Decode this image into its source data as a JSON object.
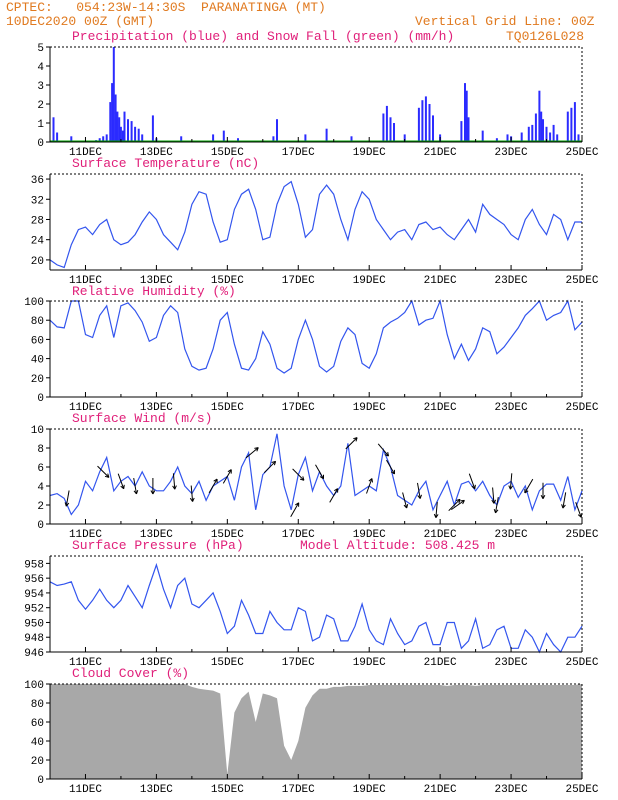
{
  "header": {
    "line1": "CPTEC:   054:23W-14:30S  PARANATINGA (MT)",
    "line2": "10DEC2020 00Z (GMT)",
    "vgrid": "Vertical Grid Line: 00Z",
    "code": "TQ0126L028"
  },
  "colors": {
    "precip": "#2b2bff",
    "snow": "#00a000",
    "line": "#3355ee",
    "cloud": "#a8a8a8",
    "title": "#e0207a",
    "header": "#e07a20"
  },
  "x_axis": {
    "ticks": [
      "11DEC",
      "13DEC",
      "15DEC",
      "17DEC",
      "19DEC",
      "21DEC",
      "23DEC",
      "25DEC"
    ],
    "start_day": 10,
    "end_day": 25
  },
  "chart_data": [
    {
      "id": "precip",
      "type": "bar",
      "title": "Precipitation (blue) and Snow Fall (green) (mm/h)",
      "ylim": [
        0,
        5
      ],
      "yticks": [
        "0",
        "1",
        "2",
        "3",
        "4",
        "5"
      ],
      "series": [
        {
          "name": "Precipitation",
          "points": [
            [
              10.1,
              1.3
            ],
            [
              10.2,
              0.5
            ],
            [
              10.6,
              0.3
            ],
            [
              11.3,
              0.1
            ],
            [
              11.4,
              0.2
            ],
            [
              11.5,
              0.3
            ],
            [
              11.6,
              0.4
            ],
            [
              11.7,
              2.1
            ],
            [
              11.75,
              3.1
            ],
            [
              11.8,
              5.0
            ],
            [
              11.85,
              2.5
            ],
            [
              11.9,
              1.6
            ],
            [
              11.95,
              1.3
            ],
            [
              12.0,
              0.8
            ],
            [
              12.05,
              0.6
            ],
            [
              12.1,
              1.6
            ],
            [
              12.2,
              1.2
            ],
            [
              12.3,
              1.1
            ],
            [
              12.4,
              0.8
            ],
            [
              12.5,
              0.7
            ],
            [
              12.6,
              0.4
            ],
            [
              12.9,
              1.4
            ],
            [
              13.0,
              0.2
            ],
            [
              13.7,
              0.3
            ],
            [
              14.6,
              0.4
            ],
            [
              14.9,
              0.6
            ],
            [
              15.3,
              0.2
            ],
            [
              16.3,
              0.3
            ],
            [
              16.4,
              1.2
            ],
            [
              17.2,
              0.4
            ],
            [
              17.8,
              0.7
            ],
            [
              18.5,
              0.3
            ],
            [
              19.4,
              1.5
            ],
            [
              19.5,
              1.9
            ],
            [
              19.6,
              1.3
            ],
            [
              19.7,
              1.0
            ],
            [
              20.0,
              0.4
            ],
            [
              20.4,
              1.8
            ],
            [
              20.5,
              2.2
            ],
            [
              20.6,
              2.4
            ],
            [
              20.7,
              2.0
            ],
            [
              20.8,
              1.4
            ],
            [
              21.0,
              0.4
            ],
            [
              21.6,
              1.1
            ],
            [
              21.7,
              3.1
            ],
            [
              21.75,
              2.7
            ],
            [
              21.8,
              1.3
            ],
            [
              22.2,
              0.6
            ],
            [
              22.6,
              0.2
            ],
            [
              22.9,
              0.4
            ],
            [
              23.0,
              0.3
            ],
            [
              23.3,
              0.5
            ],
            [
              23.5,
              0.8
            ],
            [
              23.6,
              0.9
            ],
            [
              23.7,
              1.5
            ],
            [
              23.8,
              2.7
            ],
            [
              23.85,
              1.6
            ],
            [
              23.9,
              1.2
            ],
            [
              24.0,
              0.8
            ],
            [
              24.1,
              0.5
            ],
            [
              24.2,
              0.9
            ],
            [
              24.3,
              0.4
            ],
            [
              24.6,
              1.6
            ],
            [
              24.7,
              1.8
            ],
            [
              24.8,
              2.1
            ],
            [
              24.9,
              0.4
            ]
          ]
        },
        {
          "name": "Snow Fall",
          "points": []
        }
      ]
    },
    {
      "id": "temp",
      "type": "line",
      "title": "Surface Temperature (nC)",
      "ylim": [
        18,
        37
      ],
      "yticks": [
        "20",
        "24",
        "28",
        "32",
        "36"
      ],
      "x": [
        10.0,
        10.2,
        10.4,
        10.6,
        10.8,
        11.0,
        11.2,
        11.4,
        11.6,
        11.8,
        12.0,
        12.2,
        12.4,
        12.6,
        12.8,
        13.0,
        13.2,
        13.4,
        13.6,
        13.8,
        14.0,
        14.2,
        14.4,
        14.6,
        14.8,
        15.0,
        15.2,
        15.4,
        15.6,
        15.8,
        16.0,
        16.2,
        16.4,
        16.6,
        16.8,
        17.0,
        17.2,
        17.4,
        17.6,
        17.8,
        18.0,
        18.2,
        18.4,
        18.6,
        18.8,
        19.0,
        19.2,
        19.4,
        19.6,
        19.8,
        20.0,
        20.2,
        20.4,
        20.6,
        20.8,
        21.0,
        21.2,
        21.4,
        21.6,
        21.8,
        22.0,
        22.2,
        22.4,
        22.6,
        22.8,
        23.0,
        23.2,
        23.4,
        23.6,
        23.8,
        24.0,
        24.2,
        24.4,
        24.6,
        24.8,
        25.0
      ],
      "values": [
        20,
        19,
        18.5,
        23,
        26,
        26.5,
        25,
        27,
        28,
        24,
        23,
        23.5,
        25,
        27.5,
        29.5,
        28,
        25,
        23.5,
        22,
        25.5,
        31,
        33.5,
        33,
        27.5,
        23.5,
        24,
        30,
        33,
        34,
        30,
        24,
        24.5,
        31,
        34.5,
        35.5,
        31,
        24.5,
        26,
        33,
        34.8,
        33,
        28,
        24,
        30,
        33.5,
        32,
        28,
        26,
        24,
        25.5,
        26,
        24,
        27,
        27.5,
        26,
        26.5,
        25,
        24,
        26,
        28,
        25.5,
        31,
        29,
        28,
        27,
        25,
        24,
        28,
        30,
        27,
        25,
        29,
        28,
        24,
        27.5,
        27.5
      ]
    },
    {
      "id": "rh",
      "type": "line",
      "title": "Relative Humidity (%)",
      "ylim": [
        0,
        100
      ],
      "yticks": [
        "0",
        "20",
        "40",
        "60",
        "80",
        "100"
      ],
      "x": [
        10.0,
        10.2,
        10.4,
        10.6,
        10.8,
        11.0,
        11.2,
        11.4,
        11.6,
        11.8,
        12.0,
        12.2,
        12.4,
        12.6,
        12.8,
        13.0,
        13.2,
        13.4,
        13.6,
        13.8,
        14.0,
        14.2,
        14.4,
        14.6,
        14.8,
        15.0,
        15.2,
        15.4,
        15.6,
        15.8,
        16.0,
        16.2,
        16.4,
        16.6,
        16.8,
        17.0,
        17.2,
        17.4,
        17.6,
        17.8,
        18.0,
        18.2,
        18.4,
        18.6,
        18.8,
        19.0,
        19.2,
        19.4,
        19.6,
        19.8,
        20.0,
        20.2,
        20.4,
        20.6,
        20.8,
        21.0,
        21.2,
        21.4,
        21.6,
        21.8,
        22.0,
        22.2,
        22.4,
        22.6,
        22.8,
        23.0,
        23.2,
        23.4,
        23.6,
        23.8,
        24.0,
        24.2,
        24.4,
        24.6,
        24.8,
        25.0
      ],
      "values": [
        80,
        73,
        72,
        100,
        100,
        65,
        62,
        85,
        95,
        62,
        95,
        98,
        90,
        78,
        58,
        62,
        85,
        95,
        88,
        50,
        32,
        28,
        30,
        50,
        80,
        88,
        55,
        30,
        28,
        40,
        68,
        55,
        30,
        25,
        30,
        60,
        80,
        60,
        32,
        26,
        32,
        58,
        72,
        65,
        35,
        30,
        45,
        72,
        78,
        82,
        88,
        100,
        75,
        80,
        82,
        100,
        65,
        40,
        55,
        38,
        50,
        72,
        68,
        45,
        52,
        62,
        72,
        85,
        92,
        100,
        80,
        85,
        88,
        100,
        70,
        78
      ]
    },
    {
      "id": "wind",
      "type": "line",
      "title": "Surface Wind (m/s)",
      "ylim": [
        0,
        10
      ],
      "yticks": [
        "0",
        "2",
        "4",
        "6",
        "8",
        "10"
      ],
      "x": [
        10.0,
        10.2,
        10.4,
        10.6,
        10.8,
        11.0,
        11.2,
        11.4,
        11.6,
        11.8,
        12.0,
        12.2,
        12.4,
        12.6,
        12.8,
        13.0,
        13.2,
        13.4,
        13.6,
        13.8,
        14.0,
        14.2,
        14.4,
        14.6,
        14.8,
        15.0,
        15.2,
        15.4,
        15.6,
        15.8,
        16.0,
        16.2,
        16.4,
        16.6,
        16.8,
        17.0,
        17.2,
        17.4,
        17.6,
        17.8,
        18.0,
        18.2,
        18.4,
        18.6,
        18.8,
        19.0,
        19.2,
        19.4,
        19.6,
        19.8,
        20.0,
        20.2,
        20.4,
        20.6,
        20.8,
        21.0,
        21.2,
        21.4,
        21.6,
        21.8,
        22.0,
        22.2,
        22.4,
        22.6,
        22.8,
        23.0,
        23.2,
        23.4,
        23.6,
        23.8,
        24.0,
        24.2,
        24.4,
        24.6,
        24.8,
        25.0
      ],
      "values": [
        3,
        3.2,
        2.7,
        1,
        2,
        4.5,
        3.5,
        5.5,
        7,
        3.5,
        4.5,
        5,
        4,
        5.5,
        4,
        3.5,
        3.5,
        4.5,
        6,
        4,
        3.2,
        4.5,
        2.5,
        4,
        4.5,
        5,
        2.5,
        6,
        7.5,
        1.5,
        5.2,
        6,
        9.5,
        4,
        1.5,
        5.2,
        7,
        3.5,
        5.5,
        4,
        3,
        4,
        8.5,
        3,
        3.5,
        4,
        3.5,
        7.8,
        6,
        3,
        2.5,
        2,
        3.5,
        4.5,
        1.5,
        3,
        4.5,
        2,
        4.2,
        4.5,
        3.5,
        4.5,
        3,
        2,
        4,
        4.5,
        2.8,
        4,
        1.5,
        3.5,
        4.2,
        4.2,
        2.5,
        5,
        1.5,
        3.5
      ],
      "arrows": [
        [
          10.5,
          260
        ],
        [
          11.5,
          315
        ],
        [
          12.0,
          290
        ],
        [
          12.4,
          280
        ],
        [
          12.9,
          270
        ],
        [
          13.5,
          275
        ],
        [
          14.0,
          275
        ],
        [
          14.6,
          60
        ],
        [
          15.0,
          60
        ],
        [
          15.7,
          40
        ],
        [
          16.2,
          45
        ],
        [
          16.9,
          60
        ],
        [
          17.0,
          315
        ],
        [
          17.6,
          300
        ],
        [
          18.0,
          60
        ],
        [
          18.5,
          45
        ],
        [
          19.0,
          70
        ],
        [
          19.4,
          310
        ],
        [
          19.6,
          300
        ],
        [
          20.0,
          285
        ],
        [
          20.4,
          280
        ],
        [
          20.9,
          265
        ],
        [
          21.4,
          45
        ],
        [
          21.5,
          35
        ],
        [
          21.9,
          290
        ],
        [
          22.5,
          275
        ],
        [
          22.6,
          260
        ],
        [
          23.0,
          265
        ],
        [
          23.5,
          240
        ],
        [
          23.9,
          270
        ],
        [
          24.5,
          260
        ],
        [
          24.9,
          290
        ]
      ]
    },
    {
      "id": "pres",
      "type": "line",
      "title": "Surface Pressure (hPa)",
      "annotation": "Model Altitude: 508.425 m",
      "ylim": [
        946,
        959
      ],
      "yticks": [
        "946",
        "948",
        "950",
        "952",
        "954",
        "956",
        "958"
      ],
      "x": [
        10.0,
        10.2,
        10.4,
        10.6,
        10.8,
        11.0,
        11.2,
        11.4,
        11.6,
        11.8,
        12.0,
        12.2,
        12.4,
        12.6,
        12.8,
        13.0,
        13.2,
        13.4,
        13.6,
        13.8,
        14.0,
        14.2,
        14.4,
        14.6,
        14.8,
        15.0,
        15.2,
        15.4,
        15.6,
        15.8,
        16.0,
        16.2,
        16.4,
        16.6,
        16.8,
        17.0,
        17.2,
        17.4,
        17.6,
        17.8,
        18.0,
        18.2,
        18.4,
        18.6,
        18.8,
        19.0,
        19.2,
        19.4,
        19.6,
        19.8,
        20.0,
        20.2,
        20.4,
        20.6,
        20.8,
        21.0,
        21.2,
        21.4,
        21.6,
        21.8,
        22.0,
        22.2,
        22.4,
        22.6,
        22.8,
        23.0,
        23.2,
        23.4,
        23.6,
        23.8,
        24.0,
        24.2,
        24.4,
        24.6,
        24.8,
        25.0
      ],
      "values": [
        955.5,
        955.0,
        955.2,
        955.5,
        953.0,
        951.8,
        953.0,
        954.5,
        953.0,
        952.0,
        953.0,
        955.0,
        953.5,
        952.0,
        955.0,
        957.8,
        954.5,
        952.0,
        955.0,
        956.0,
        952.5,
        952.0,
        953.0,
        954.0,
        951.5,
        948.5,
        949.5,
        953.0,
        951.0,
        948.5,
        948.5,
        951.5,
        950.0,
        949.0,
        949.0,
        952.0,
        951.5,
        947.5,
        948.0,
        951.0,
        950.5,
        947.5,
        947.5,
        949.5,
        952.5,
        949.0,
        947.5,
        947.0,
        950.5,
        948.5,
        947.0,
        947.5,
        949.5,
        950.0,
        947.0,
        947.0,
        950.0,
        950.0,
        946.5,
        947.5,
        950.5,
        946.5,
        947.0,
        949.0,
        949.5,
        946.5,
        946.5,
        949.0,
        948.0,
        946.0,
        948.5,
        947.0,
        946.0,
        948.0,
        948.0,
        949.5
      ]
    },
    {
      "id": "cloud",
      "type": "area",
      "title": "Cloud Cover (%)",
      "ylim": [
        0,
        100
      ],
      "yticks": [
        "0",
        "20",
        "40",
        "60",
        "80",
        "100"
      ],
      "x": [
        10.0,
        10.2,
        10.4,
        10.6,
        10.8,
        11.0,
        11.2,
        11.4,
        11.6,
        11.8,
        12.0,
        12.2,
        12.4,
        12.6,
        12.8,
        13.0,
        13.2,
        13.4,
        13.6,
        13.8,
        14.0,
        14.2,
        14.4,
        14.6,
        14.8,
        15.0,
        15.2,
        15.4,
        15.6,
        15.8,
        16.0,
        16.2,
        16.4,
        16.6,
        16.8,
        17.0,
        17.2,
        17.4,
        17.6,
        17.8,
        18.0,
        18.2,
        18.4,
        18.6,
        18.8,
        19.0,
        19.2,
        19.4,
        19.6,
        19.8,
        20.0,
        20.2,
        20.4,
        20.6,
        20.8,
        21.0,
        21.2,
        21.4,
        21.6,
        21.8,
        22.0,
        22.2,
        22.4,
        22.6,
        22.8,
        23.0,
        23.2,
        23.4,
        23.6,
        23.8,
        24.0,
        24.2,
        24.4,
        24.6,
        24.8,
        25.0
      ],
      "values": [
        100,
        100,
        100,
        100,
        100,
        100,
        100,
        100,
        100,
        100,
        100,
        100,
        100,
        100,
        100,
        100,
        100,
        100,
        100,
        100,
        97,
        95,
        94,
        93,
        90,
        5,
        70,
        85,
        92,
        60,
        90,
        88,
        85,
        35,
        20,
        40,
        75,
        88,
        95,
        95,
        97,
        97,
        98,
        98,
        98,
        99,
        99,
        99,
        99,
        99,
        99,
        99,
        99,
        99,
        99,
        99,
        98,
        99,
        99,
        99,
        98,
        99,
        99,
        99,
        99,
        99,
        99,
        99,
        99,
        99,
        99,
        99,
        99,
        99,
        99,
        100
      ]
    }
  ]
}
